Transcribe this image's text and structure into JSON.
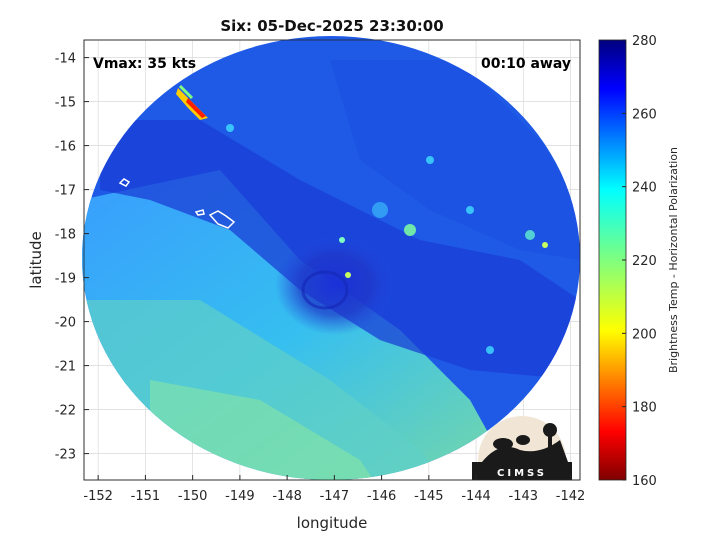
{
  "chart_data": {
    "type": "heatmap",
    "title": "Six: 05-Dec-2025 23:30:00",
    "xlabel": "longitude",
    "ylabel": "latitude",
    "xlim": [
      -152.3,
      -141.8
    ],
    "ylim": [
      -23.6,
      -13.6
    ],
    "x_ticks": [
      -152,
      -151,
      -150,
      -149,
      -148,
      -147,
      -146,
      -145,
      -144,
      -143,
      -142
    ],
    "y_ticks": [
      -14,
      -15,
      -16,
      -17,
      -18,
      -19,
      -20,
      -21,
      -22,
      -23
    ],
    "grid": true,
    "annotations": {
      "vmax": "Vmax: 35 kts",
      "time_offset": "00:10 away"
    },
    "colorbar": {
      "label": "Brightness Temp - Horizontal Polarization",
      "min": 160,
      "max": 280,
      "ticks": [
        280,
        260,
        240,
        220,
        200,
        180,
        160
      ],
      "colormap": "jet"
    },
    "storm_center": {
      "lon": -146.9,
      "lat": -19.2
    }
  },
  "logo_text": "CIMSS",
  "colors": {
    "coast_outline": "#ffffff",
    "grid": "#d9d9d9"
  }
}
